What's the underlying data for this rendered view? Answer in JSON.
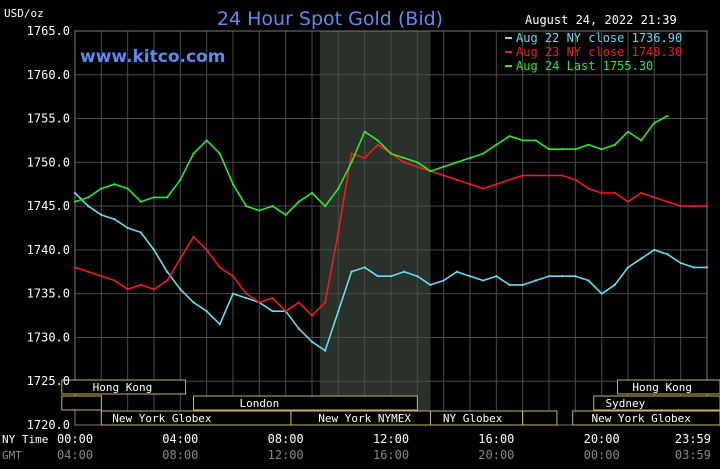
{
  "chart_data": {
    "type": "line",
    "title": "24 Hour Spot Gold (Bid)",
    "ylabel": "USD/oz",
    "watermark": "www.kitco.com",
    "timestamp": "August 24, 2022 21:39",
    "ylim": [
      1720,
      1765
    ],
    "yticks": [
      "1765.0",
      "1760.0",
      "1755.0",
      "1750.0",
      "1745.0",
      "1740.0",
      "1735.0",
      "1730.0",
      "1725.0",
      "1720.0"
    ],
    "xlim": [
      0,
      24
    ],
    "x_ticks_ny": [
      "00:00",
      "04:00",
      "08:00",
      "12:00",
      "16:00",
      "20:00",
      "23:59"
    ],
    "x_ticks_gmt": [
      "04:00",
      "08:00",
      "12:00",
      "16:00",
      "20:00",
      "00:00",
      "03:59"
    ],
    "ny_time_label": "NY Time",
    "gmt_label": "GMT",
    "shaded_session": {
      "start": 9.3,
      "end": 13.5
    },
    "grid": true,
    "legend_position": "top-right",
    "series": [
      {
        "name": "Aug 22 NY close 1736.90",
        "color": "#66dcee",
        "x": [
          0,
          0.5,
          1,
          1.5,
          2,
          2.5,
          3,
          3.5,
          4,
          4.5,
          5,
          5.5,
          6,
          6.5,
          7,
          7.5,
          8,
          8.5,
          9,
          9.5,
          10,
          10.5,
          11,
          11.5,
          12,
          12.5,
          13,
          13.5,
          14,
          14.5,
          15,
          15.5,
          16,
          16.5,
          17,
          17.5,
          18,
          18.5,
          19,
          19.5,
          20,
          20.5,
          21,
          21.5,
          22,
          22.5,
          23,
          23.5,
          24
        ],
        "values": [
          1746.5,
          1745.0,
          1744.0,
          1743.5,
          1742.5,
          1742.0,
          1740.0,
          1737.5,
          1735.5,
          1734.0,
          1733.0,
          1731.5,
          1735.0,
          1734.5,
          1734.0,
          1733.0,
          1733.0,
          1731.0,
          1729.5,
          1728.5,
          1733.0,
          1737.5,
          1738.0,
          1737.0,
          1737.0,
          1737.5,
          1737.0,
          1736.0,
          1736.5,
          1737.5,
          1737.0,
          1736.5,
          1737.0,
          1736.0,
          1736.0,
          1736.5,
          1737.0,
          1737.0,
          1737.0,
          1736.5,
          1735.0,
          1736.0,
          1738.0,
          1739.0,
          1740.0,
          1739.5,
          1738.5,
          1738.0,
          1738.0
        ]
      },
      {
        "name": "Aug 23 NY close 1748.30",
        "color": "#ee1c1c",
        "x": [
          0,
          0.5,
          1,
          1.5,
          2,
          2.5,
          3,
          3.5,
          4,
          4.5,
          5,
          5.5,
          6,
          6.5,
          7,
          7.5,
          8,
          8.5,
          9,
          9.5,
          10,
          10.5,
          11,
          11.5,
          12,
          12.5,
          13,
          13.5,
          14,
          14.5,
          15,
          15.5,
          16,
          16.5,
          17,
          17.5,
          18,
          18.5,
          19,
          19.5,
          20,
          20.5,
          21,
          21.5,
          22,
          22.5,
          23,
          23.5,
          24
        ],
        "values": [
          1738.0,
          1737.5,
          1737.0,
          1736.5,
          1735.5,
          1736.0,
          1735.5,
          1736.5,
          1739.0,
          1741.5,
          1740.0,
          1738.0,
          1737.0,
          1735.0,
          1734.0,
          1734.5,
          1733.0,
          1734.0,
          1732.5,
          1734.0,
          1742.0,
          1751.0,
          1750.5,
          1752.0,
          1751.0,
          1750.0,
          1749.5,
          1749.0,
          1748.5,
          1748.0,
          1747.5,
          1747.0,
          1747.5,
          1748.0,
          1748.5,
          1748.5,
          1748.5,
          1748.5,
          1748.0,
          1747.0,
          1746.5,
          1746.5,
          1745.5,
          1746.5,
          1746.0,
          1745.5,
          1745.0,
          1745.0,
          1745.0
        ]
      },
      {
        "name": "Aug 24 Last 1755.30",
        "color": "#2ee82e",
        "x": [
          0,
          0.5,
          1,
          1.5,
          2,
          2.5,
          3,
          3.5,
          4,
          4.5,
          5,
          5.5,
          6,
          6.5,
          7,
          7.5,
          8,
          8.5,
          9,
          9.5,
          10,
          10.5,
          11,
          11.5,
          12,
          12.5,
          13,
          13.5,
          14,
          14.5,
          15,
          15.5,
          16,
          16.5,
          17,
          17.5,
          18,
          18.5,
          19,
          19.5,
          20,
          20.5,
          21,
          21.5,
          22,
          22.5
        ],
        "values": [
          1745.5,
          1746.0,
          1747.0,
          1747.5,
          1747.0,
          1745.5,
          1746.0,
          1746.0,
          1748.0,
          1751.0,
          1752.5,
          1751.0,
          1747.5,
          1745.0,
          1744.5,
          1745.0,
          1744.0,
          1745.5,
          1746.5,
          1745.0,
          1747.0,
          1750.0,
          1753.5,
          1752.5,
          1751.0,
          1750.5,
          1750.0,
          1749.0,
          1749.5,
          1750.0,
          1750.5,
          1751.0,
          1752.0,
          1753.0,
          1752.5,
          1752.5,
          1751.5,
          1751.5,
          1751.5,
          1752.0,
          1751.5,
          1752.0,
          1753.5,
          1752.5,
          1754.5,
          1755.3
        ]
      }
    ],
    "sessions": [
      {
        "name": "Hong Kong",
        "row": 0,
        "start": -0.5,
        "end": 4.2,
        "label_at": 1.8
      },
      {
        "name": "",
        "row": 1,
        "start": -0.5,
        "end": 1.0,
        "label_at": 0
      },
      {
        "name": "London",
        "row": 1,
        "start": 4.5,
        "end": 13.0,
        "label_at": 7.0
      },
      {
        "name": "New York Globex",
        "row": 2,
        "start": 1.0,
        "end": 8.2,
        "label_at": 3.3
      },
      {
        "name": "New York NYMEX",
        "row": 2,
        "start": 8.2,
        "end": 13.5,
        "label_at": 11.0
      },
      {
        "name": "NY Globex",
        "row": 2,
        "start": 13.5,
        "end": 17.0,
        "label_at": 15.1
      },
      {
        "name": "",
        "row": 2,
        "start": 17.0,
        "end": 18.3,
        "label_at": 0
      },
      {
        "name": "Hong Kong",
        "row": 0,
        "start": 20.6,
        "end": 24.5,
        "label_at": 22.3
      },
      {
        "name": "Sydney",
        "row": 1,
        "start": 19.7,
        "end": 24.5,
        "label_at": 20.9
      },
      {
        "name": "New York Globex",
        "row": 2,
        "start": 18.9,
        "end": 24.5,
        "label_at": 21.5
      }
    ]
  }
}
